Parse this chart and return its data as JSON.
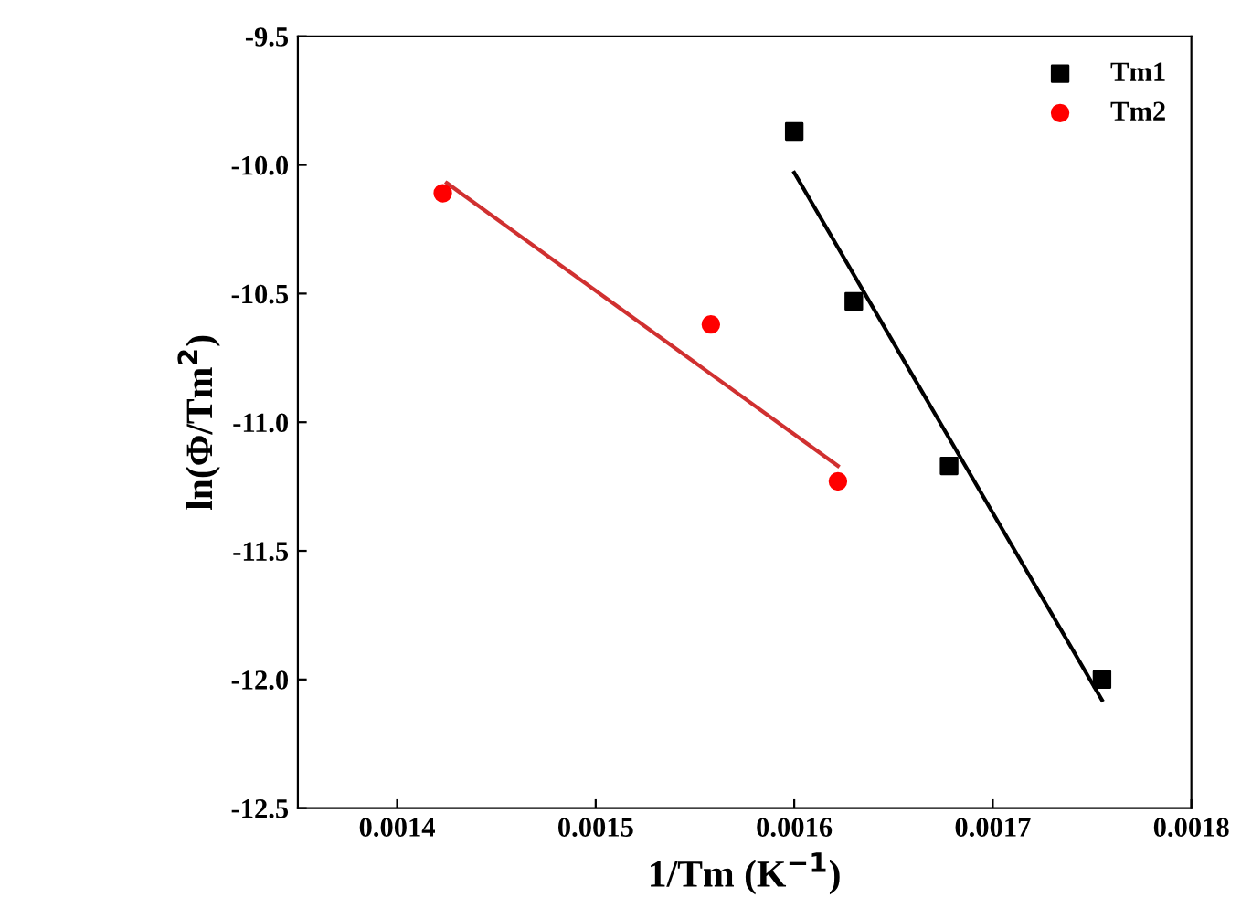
{
  "chart_data": {
    "type": "scatter",
    "xlabel": "1/Tm (K$^{−1}$)",
    "ylabel": "ln(Φ/Tm$^{2}$)",
    "xlim": [
      0.00135,
      0.0018
    ],
    "xticks": [
      0.0014,
      0.0015,
      0.0016,
      0.0017,
      0.0018
    ],
    "ylim": [
      -12.5,
      -9.5
    ],
    "yticks": [
      -12.5,
      {
        "value": -12,
        "label": "-12.0"
      },
      -11.5,
      {
        "value": -11,
        "label": "-11.0"
      },
      -10.5,
      {
        "value": -10,
        "label": "-10.0"
      },
      -9.5
    ],
    "legend": "top right",
    "grid": false,
    "series": [
      {
        "name": "Tm1",
        "color": "#000000",
        "marker": "square",
        "x": [
          0.0016,
          0.00163,
          0.001678,
          0.001755
        ],
        "values": [
          -9.87,
          -10.53,
          -11.17,
          -12.0
        ]
      },
      {
        "name": "Tm2",
        "color": "#ff0000",
        "marker": "circle",
        "x": [
          0.001423,
          0.001558,
          0.001622
        ],
        "values": [
          -10.11,
          -10.62,
          -11.23
        ]
      },
      {
        "type": "line",
        "color": "#000000",
        "marker": "none",
        "x": [
          0.0016,
          0.001755
        ],
        "values": [
          -10.03,
          -12.08
        ]
      },
      {
        "type": "line",
        "color": "#d03030",
        "marker": "none",
        "x": [
          0.001425,
          0.001622
        ],
        "values": [
          -10.07,
          -11.17
        ]
      }
    ]
  }
}
